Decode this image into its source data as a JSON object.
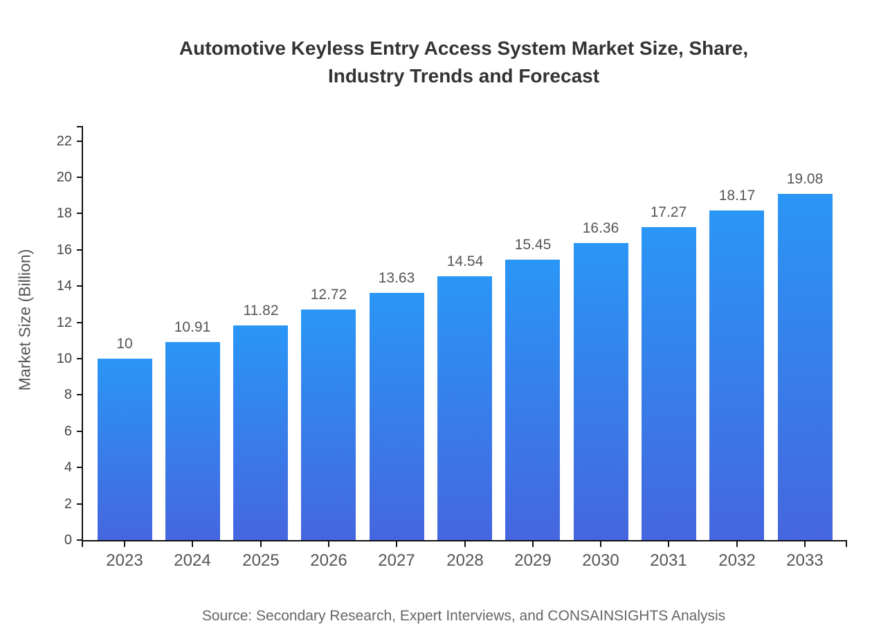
{
  "title": {
    "line1": "Automotive Keyless Entry Access System Market Size, Share,",
    "line2": "Industry Trends and Forecast"
  },
  "source": {
    "text": "Source: Secondary Research, Expert Interviews, and CONSAINSIGHTS Analysis"
  },
  "chart_data": {
    "type": "bar",
    "title": "Automotive Keyless Entry Access System Market Size, Share, Industry Trends and Forecast",
    "categories": [
      "2023",
      "2024",
      "2025",
      "2026",
      "2027",
      "2028",
      "2029",
      "2030",
      "2031",
      "2032",
      "2033"
    ],
    "values": [
      10,
      10.91,
      11.82,
      12.72,
      13.63,
      14.54,
      15.45,
      16.36,
      17.27,
      18.17,
      19.08
    ],
    "value_labels": [
      "10",
      "10.91",
      "11.82",
      "12.72",
      "13.63",
      "14.54",
      "15.45",
      "16.36",
      "17.27",
      "18.17",
      "19.08"
    ],
    "xlabel": "",
    "ylabel": "Market Size (Billion)",
    "ylim": [
      0,
      22.8
    ],
    "yticks": [
      0,
      2,
      4,
      6,
      8,
      10,
      12,
      14,
      16,
      18,
      20,
      22
    ],
    "grid": false,
    "legend": false,
    "colors": {
      "bar_gradient_top": "#2A96F6",
      "bar_gradient_bottom": "#4566DF",
      "axis": "#111111",
      "tick_label": "#555555",
      "value_label": "#555555",
      "title": "#333333",
      "source": "#666666",
      "background": "#ffffff"
    }
  }
}
